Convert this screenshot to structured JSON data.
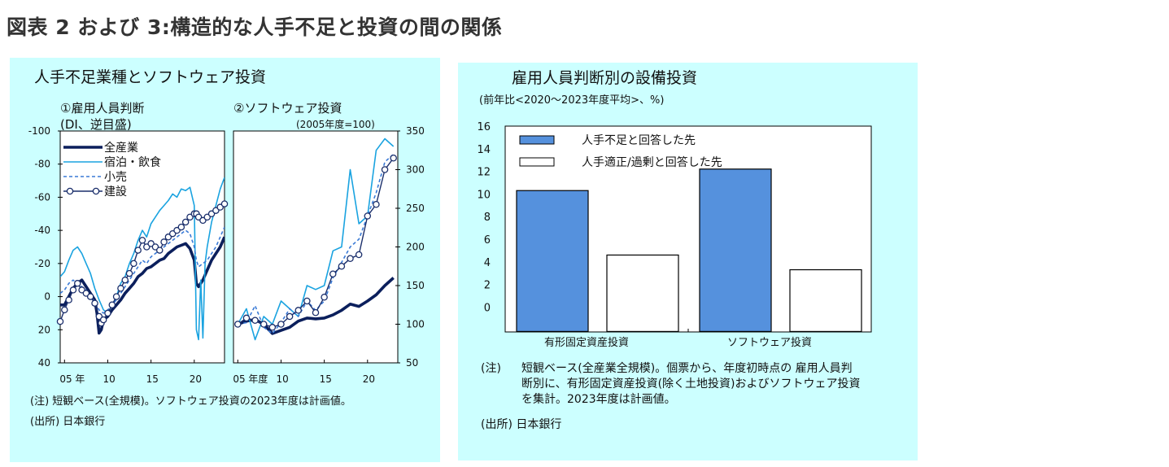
{
  "page": {
    "title": "図表 2 および 3:構造的な人手不足と投資の間の関係"
  },
  "left_panel": {
    "title": "人手不足業種とソフトウェア投資",
    "note": "(注) 短観ベース(全規模)。ソフトウェア投資の2023年度は計画値。",
    "source": "(出所) 日本銀行"
  },
  "right_panel": {
    "title": "雇用人員判断別の設備投資",
    "subtitle": "(前年比<2020～2023年度平均>、%)",
    "note_label": "(注)",
    "note_lines": [
      "短観ベース(全産業全規模)。個票から、年度初時点の 雇用人員判",
      "断別に、有形固定資産投資(除く土地投資)およびソフトウェア投資",
      "を集計。2023年度は計画値。"
    ],
    "source": "(出所) 日本銀行"
  },
  "chart_data": [
    {
      "type": "line",
      "title": "①雇用人員判断",
      "subtitle": "(DI、逆目盛)",
      "y_inverted": true,
      "ylim": [
        -100,
        40
      ],
      "yticks": [
        -100,
        -80,
        -60,
        -40,
        -20,
        0,
        20,
        40
      ],
      "x_range": [
        2004.5,
        2023.5
      ],
      "xticks": [
        {
          "x": 2005,
          "label": "05 年"
        },
        {
          "x": 2010,
          "label": "10"
        },
        {
          "x": 2015,
          "label": "15"
        },
        {
          "x": 2020,
          "label": "20"
        }
      ],
      "series": [
        {
          "name": "全産業",
          "color": "#0b1f5c",
          "style": "solid-thick",
          "x": [
            2004.5,
            2005,
            2005.5,
            2006,
            2006.5,
            2007,
            2007.5,
            2008,
            2008.5,
            2008.75,
            2009,
            2009.25,
            2009.5,
            2010,
            2010.5,
            2011,
            2011.5,
            2012,
            2012.5,
            2013,
            2013.5,
            2014,
            2014.5,
            2015,
            2015.5,
            2016,
            2016.5,
            2017,
            2017.5,
            2018,
            2018.5,
            2019,
            2019.5,
            2020,
            2020.25,
            2020.5,
            2021,
            2021.5,
            2022,
            2022.5,
            2023,
            2023.5
          ],
          "values": [
            5,
            5,
            0,
            -5,
            -8,
            -10,
            -6,
            -2,
            2,
            10,
            22,
            20,
            14,
            12,
            8,
            5,
            2,
            -2,
            -5,
            -8,
            -12,
            -14,
            -17,
            -18,
            -20,
            -22,
            -23,
            -26,
            -28,
            -30,
            -31,
            -32,
            -29,
            -22,
            -8,
            -6,
            -10,
            -16,
            -22,
            -26,
            -30,
            -36
          ]
        },
        {
          "name": "宿泊・飲食",
          "color": "#1aa3e0",
          "style": "solid-thin",
          "x": [
            2004.5,
            2005,
            2005.5,
            2006,
            2006.5,
            2007,
            2007.5,
            2008,
            2008.5,
            2009,
            2009.5,
            2010,
            2010.5,
            2011,
            2011.5,
            2012,
            2012.5,
            2013,
            2013.5,
            2014,
            2014.5,
            2015,
            2015.5,
            2016,
            2016.5,
            2017,
            2017.5,
            2018,
            2018.5,
            2019,
            2019.5,
            2020,
            2020.25,
            2020.5,
            2020.75,
            2021,
            2021.25,
            2021.5,
            2022,
            2022.5,
            2023,
            2023.5
          ],
          "values": [
            -12,
            -15,
            -22,
            -28,
            -30,
            -26,
            -20,
            -14,
            -5,
            2,
            8,
            10,
            5,
            0,
            -8,
            -12,
            -20,
            -26,
            -34,
            -40,
            -36,
            -44,
            -48,
            -52,
            -55,
            -58,
            -62,
            -60,
            -65,
            -64,
            -66,
            -55,
            20,
            26,
            -10,
            25,
            -20,
            -30,
            -45,
            -55,
            -65,
            -72
          ]
        },
        {
          "name": "小売",
          "color": "#3a7ad6",
          "style": "dashed",
          "x": [
            2004.5,
            2005,
            2005.5,
            2006,
            2006.5,
            2007,
            2007.5,
            2008,
            2008.5,
            2009,
            2009.5,
            2010,
            2010.5,
            2011,
            2011.5,
            2012,
            2012.5,
            2013,
            2013.5,
            2014,
            2014.5,
            2015,
            2015.5,
            2016,
            2016.5,
            2017,
            2017.5,
            2018,
            2018.5,
            2019,
            2019.5,
            2020,
            2020.25,
            2020.5,
            2021,
            2021.5,
            2022,
            2022.5,
            2023,
            2023.5
          ],
          "values": [
            -2,
            -4,
            -8,
            -10,
            -8,
            -6,
            -4,
            0,
            3,
            8,
            10,
            8,
            5,
            2,
            -2,
            -6,
            -10,
            -14,
            -18,
            -22,
            -20,
            -24,
            -26,
            -28,
            -30,
            -32,
            -34,
            -36,
            -38,
            -40,
            -38,
            -30,
            -22,
            -18,
            -20,
            -22,
            -26,
            -30,
            -36,
            -42
          ]
        },
        {
          "name": "建設",
          "color": "#1a2e6b",
          "style": "marker",
          "x": [
            2004.5,
            2005,
            2005.5,
            2006,
            2006.5,
            2007,
            2007.5,
            2008,
            2008.5,
            2009,
            2009.25,
            2009.5,
            2010,
            2010.5,
            2011,
            2011.5,
            2012,
            2012.5,
            2013,
            2013.5,
            2014,
            2014.5,
            2015,
            2015.5,
            2016,
            2016.5,
            2017,
            2017.5,
            2018,
            2018.5,
            2019,
            2019.5,
            2020,
            2020.25,
            2020.5,
            2021,
            2021.5,
            2022,
            2022.5,
            2023,
            2023.5
          ],
          "values": [
            15,
            8,
            2,
            -4,
            -8,
            -4,
            -2,
            0,
            4,
            12,
            16,
            14,
            10,
            5,
            0,
            -5,
            -10,
            -14,
            -20,
            -28,
            -34,
            -30,
            -32,
            -30,
            -28,
            -33,
            -36,
            -38,
            -40,
            -42,
            -45,
            -48,
            -50,
            -50,
            -48,
            -46,
            -48,
            -50,
            -52,
            -54,
            -56
          ]
        }
      ]
    },
    {
      "type": "line",
      "title": "②ソフトウェア投資",
      "subtitle": "(2005年度=100)",
      "ylim": [
        50,
        350
      ],
      "yticks": [
        50,
        100,
        150,
        200,
        250,
        300,
        350
      ],
      "x_range": [
        2004.5,
        2023.5
      ],
      "xticks": [
        {
          "x": 2005,
          "label": "05 年度"
        },
        {
          "x": 2010,
          "label": "10"
        },
        {
          "x": 2015,
          "label": "15"
        },
        {
          "x": 2020,
          "label": "20"
        }
      ],
      "series": [
        {
          "name": "全産業",
          "color": "#0b1f5c",
          "style": "solid-thick",
          "x": [
            2005,
            2006,
            2007,
            2008,
            2009,
            2010,
            2011,
            2012,
            2013,
            2014,
            2015,
            2016,
            2017,
            2018,
            2019,
            2020,
            2021,
            2022,
            2023
          ],
          "values": [
            100,
            104,
            106,
            100,
            88,
            92,
            96,
            104,
            108,
            107,
            108,
            112,
            118,
            126,
            123,
            130,
            138,
            150,
            160
          ]
        },
        {
          "name": "宿泊・飲食",
          "color": "#1aa3e0",
          "style": "solid-thin",
          "x": [
            2005,
            2006,
            2007,
            2008,
            2009,
            2010,
            2011,
            2012,
            2013,
            2014,
            2015,
            2016,
            2017,
            2018,
            2019,
            2020,
            2021,
            2022,
            2023
          ],
          "values": [
            100,
            120,
            80,
            110,
            100,
            130,
            120,
            110,
            150,
            145,
            150,
            195,
            200,
            300,
            230,
            240,
            325,
            340,
            330
          ]
        },
        {
          "name": "小売",
          "color": "#3a7ad6",
          "style": "dashed",
          "x": [
            2005,
            2006,
            2007,
            2008,
            2009,
            2010,
            2011,
            2012,
            2013,
            2014,
            2015,
            2016,
            2017,
            2018,
            2019,
            2020,
            2021,
            2022,
            2023
          ],
          "values": [
            100,
            102,
            124,
            96,
            88,
            102,
            120,
            110,
            130,
            118,
            130,
            160,
            180,
            200,
            210,
            240,
            270,
            310,
            320
          ]
        },
        {
          "name": "建設",
          "color": "#1a2e6b",
          "style": "marker",
          "x": [
            2005,
            2006,
            2007,
            2008,
            2009,
            2010,
            2011,
            2012,
            2013,
            2014,
            2015,
            2016,
            2017,
            2018,
            2019,
            2020,
            2021,
            2022,
            2023
          ],
          "values": [
            100,
            108,
            105,
            100,
            96,
            100,
            110,
            118,
            130,
            115,
            135,
            165,
            175,
            185,
            190,
            240,
            255,
            300,
            315
          ]
        }
      ]
    },
    {
      "type": "bar",
      "categories": [
        "有形固定資産投資",
        "ソフトウェア投資"
      ],
      "series": [
        {
          "name": "人手不足と回答した先",
          "color": "#5591dd",
          "values": [
            10.3,
            12.2
          ]
        },
        {
          "name": "人手適正/過剰と回答した先",
          "color": "#ffffff",
          "values": [
            4.6,
            3.3
          ]
        }
      ],
      "ylim": [
        -2.2,
        16
      ],
      "yticks": [
        0,
        2,
        4,
        6,
        8,
        10,
        12,
        14,
        16
      ]
    }
  ]
}
